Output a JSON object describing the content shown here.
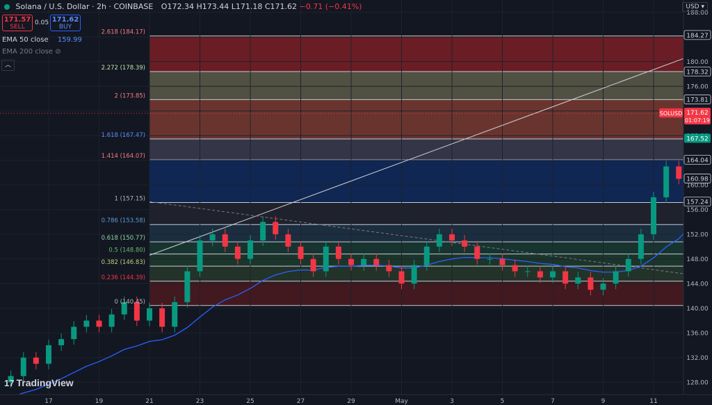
{
  "header": {
    "symbol": "Solana / U.S. Dollar · 2h · COINBASE",
    "ohlc": "O172.34 H173.44 L171.18 C171.62",
    "change": "−0.71 (−0.41%)"
  },
  "trade": {
    "sell_price": "171.57",
    "sell_label": "SELL",
    "spread": "0.05",
    "buy_price": "171.62",
    "buy_label": "BUY"
  },
  "indicators": {
    "ema50_label": "EMA 50 close",
    "ema50_value": "159.99",
    "ema200_label": "EMA 200 close"
  },
  "currency": "USD",
  "brand": "TradingView",
  "colors": {
    "up": "#089981",
    "down": "#f23645",
    "ema50": "#2962ff",
    "price_tag": "#f23645",
    "fib_tag": "#089981"
  },
  "chart_data": {
    "type": "candlestick",
    "title": "Solana / U.S. Dollar · 2h · COINBASE",
    "ylim": [
      126,
      190
    ],
    "y_ticks": [
      128,
      132,
      136,
      140,
      144,
      148,
      152,
      156,
      160,
      164,
      168,
      172,
      176,
      180,
      184,
      188
    ],
    "x_ticks": [
      "17",
      "19",
      "21",
      "23",
      "25",
      "27",
      "29",
      "May",
      "3",
      "5",
      "7",
      "9",
      "11"
    ],
    "fib_levels": [
      {
        "label": "0 (140.45)",
        "value": 140.45
      },
      {
        "label": "0.236 (144.39)",
        "value": 144.39
      },
      {
        "label": "0.382 (146.83)",
        "value": 146.83
      },
      {
        "label": "0.5 (148.80)",
        "value": 148.8
      },
      {
        "label": "0.618 (150.77)",
        "value": 150.77
      },
      {
        "label": "0.786 (153.58)",
        "value": 153.58
      },
      {
        "label": "1 (157.15)",
        "value": 157.15
      },
      {
        "label": "1.414 (164.07)",
        "value": 164.07
      },
      {
        "label": "1.618 (167.47)",
        "value": 167.47
      },
      {
        "label": "2 (173.85)",
        "value": 173.85
      },
      {
        "label": "2.272 (178.39)",
        "value": 178.39
      },
      {
        "label": "2.618 (184.17)",
        "value": 184.17
      }
    ],
    "axis_labels": [
      {
        "text": "184.27",
        "value": 184.27
      },
      {
        "text": "178.32",
        "value": 178.32
      },
      {
        "text": "173.81",
        "value": 173.81
      },
      {
        "text": "164.04",
        "value": 164.04
      },
      {
        "text": "160.98",
        "value": 160.98
      },
      {
        "text": "157.24",
        "value": 157.24
      }
    ],
    "price_tag": {
      "symbol": "SOLUSD",
      "price": "171.62",
      "countdown": "01:07:19",
      "value": 171.62
    },
    "ema_tag": {
      "text": "167.52",
      "value": 167.52
    },
    "close_series": [
      {
        "d": 15.5,
        "c": 129
      },
      {
        "d": 16.0,
        "c": 132
      },
      {
        "d": 16.5,
        "c": 131
      },
      {
        "d": 17.0,
        "c": 134
      },
      {
        "d": 17.5,
        "c": 135
      },
      {
        "d": 18.0,
        "c": 137
      },
      {
        "d": 18.5,
        "c": 138
      },
      {
        "d": 19.0,
        "c": 137
      },
      {
        "d": 19.5,
        "c": 139
      },
      {
        "d": 20.0,
        "c": 141
      },
      {
        "d": 20.5,
        "c": 138
      },
      {
        "d": 21.0,
        "c": 140
      },
      {
        "d": 21.5,
        "c": 137
      },
      {
        "d": 22.0,
        "c": 141
      },
      {
        "d": 22.5,
        "c": 146
      },
      {
        "d": 23.0,
        "c": 151
      },
      {
        "d": 23.5,
        "c": 152
      },
      {
        "d": 24.0,
        "c": 150
      },
      {
        "d": 24.5,
        "c": 148
      },
      {
        "d": 25.0,
        "c": 151
      },
      {
        "d": 25.5,
        "c": 154
      },
      {
        "d": 26.0,
        "c": 152
      },
      {
        "d": 26.5,
        "c": 150
      },
      {
        "d": 27.0,
        "c": 148
      },
      {
        "d": 27.5,
        "c": 146
      },
      {
        "d": 28.0,
        "c": 150
      },
      {
        "d": 28.5,
        "c": 148
      },
      {
        "d": 29.0,
        "c": 147
      },
      {
        "d": 29.5,
        "c": 148
      },
      {
        "d": 30.0,
        "c": 147
      },
      {
        "d": 30.5,
        "c": 146
      },
      {
        "d": 31.0,
        "c": 144
      },
      {
        "d": 31.5,
        "c": 147
      },
      {
        "d": 32.0,
        "c": 150
      },
      {
        "d": 32.5,
        "c": 152
      },
      {
        "d": 33.0,
        "c": 151
      },
      {
        "d": 33.5,
        "c": 150
      },
      {
        "d": 34.0,
        "c": 148
      },
      {
        "d": 34.5,
        "c": 148
      },
      {
        "d": 35.0,
        "c": 147
      },
      {
        "d": 35.5,
        "c": 146
      },
      {
        "d": 36.0,
        "c": 146
      },
      {
        "d": 36.5,
        "c": 145
      },
      {
        "d": 37.0,
        "c": 146
      },
      {
        "d": 37.5,
        "c": 144
      },
      {
        "d": 38.0,
        "c": 145
      },
      {
        "d": 38.5,
        "c": 143
      },
      {
        "d": 39.0,
        "c": 144
      },
      {
        "d": 39.5,
        "c": 146
      },
      {
        "d": 40.0,
        "c": 148
      },
      {
        "d": 40.5,
        "c": 152
      },
      {
        "d": 41.0,
        "c": 158
      },
      {
        "d": 41.5,
        "c": 163
      },
      {
        "d": 42.0,
        "c": 161
      },
      {
        "d": 42.5,
        "c": 170
      },
      {
        "d": 43.0,
        "c": 172
      },
      {
        "d": 43.5,
        "c": 171.6
      }
    ]
  }
}
